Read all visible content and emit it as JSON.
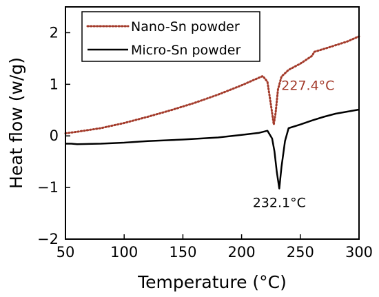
{
  "chart_data": {
    "type": "line",
    "title": "",
    "xlabel": "Temperature (°C)",
    "ylabel": "Heat flow (w/g)",
    "xlim": [
      50,
      300
    ],
    "ylim": [
      -2,
      2.5
    ],
    "x_ticks": [
      50,
      100,
      150,
      200,
      250,
      300
    ],
    "y_ticks": [
      -2,
      -1,
      0,
      1,
      2
    ],
    "grid": false,
    "legend_position": "top-left",
    "series": [
      {
        "name": "Nano-Sn powder",
        "color": "#a33a2a",
        "style": "dotted",
        "x": [
          50,
          60,
          80,
          100,
          120,
          140,
          160,
          180,
          200,
          210,
          218,
          222,
          225,
          227.4,
          229,
          231,
          234,
          240,
          250,
          260,
          262,
          275,
          290,
          300
        ],
        "y": [
          0.05,
          0.08,
          0.15,
          0.25,
          0.37,
          0.5,
          0.64,
          0.8,
          0.98,
          1.08,
          1.16,
          1.05,
          0.6,
          0.22,
          0.45,
          0.9,
          1.15,
          1.28,
          1.4,
          1.55,
          1.63,
          1.72,
          1.83,
          1.93
        ]
      },
      {
        "name": "Micro-Sn powder",
        "color": "#000000",
        "style": "solid",
        "x": [
          50,
          55,
          60,
          80,
          100,
          120,
          150,
          180,
          200,
          215,
          222,
          226,
          228,
          230,
          232.1,
          234,
          237,
          240,
          250,
          260,
          270,
          280,
          290,
          300
        ],
        "y": [
          -0.15,
          -0.15,
          -0.16,
          -0.15,
          -0.13,
          -0.1,
          -0.07,
          -0.03,
          0.02,
          0.06,
          0.1,
          -0.05,
          -0.3,
          -0.7,
          -1.02,
          -0.6,
          -0.1,
          0.15,
          0.22,
          0.3,
          0.37,
          0.43,
          0.47,
          0.51
        ]
      }
    ],
    "annotations": [
      {
        "text": "227.4°C",
        "x": 227.4,
        "y": 0.22,
        "color": "#a33a2a"
      },
      {
        "text": "232.1°C",
        "x": 232.1,
        "y": -1.02,
        "color": "#000000"
      }
    ]
  }
}
